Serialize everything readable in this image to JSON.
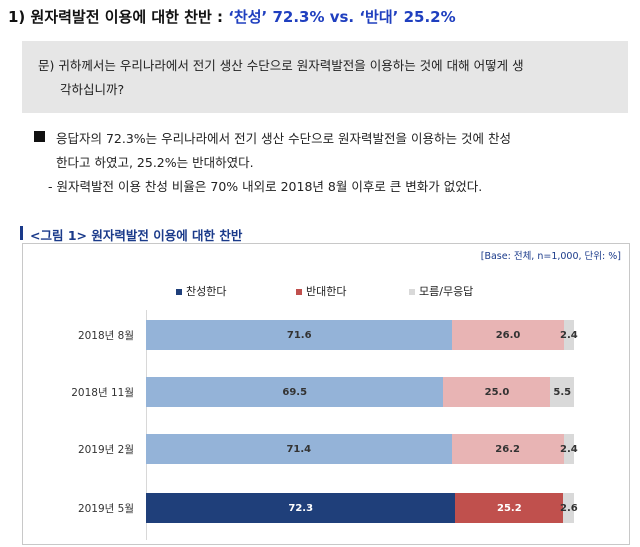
{
  "section": {
    "prefix": "1) 원자력발전 이용에 대한 찬반 : ",
    "favor": "‘찬성’ 72.3%",
    "vs": " vs. ",
    "oppose": "‘반대’ 25.2%"
  },
  "question": {
    "line1": "문) 귀하께서는 우리나라에서 전기 생산 수단으로 원자력발전을 이용하는 것에 대해 어떻게 생",
    "line2": "각하십니까?"
  },
  "answer": {
    "line1": "응답자의 72.3%는 우리나라에서 전기 생산 수단으로 원자력발전을 이용하는 것에 찬성",
    "line2": "한다고 하였고, 25.2%는 반대하였다.",
    "line3": "- 원자력발전 이용 찬성 비율은 70% 내외로 2018년 8월 이후로 큰 변화가 없었다."
  },
  "figure": {
    "title": "<그림 1> 원자력발전 이용에 대한 찬반",
    "base": "[Base: 전체, n=1,000, 단위: %]"
  },
  "colors": {
    "favor": "#94b3d8",
    "favor_latest": "#1f3f7a",
    "oppose": "#e8b4b4",
    "oppose_latest": "#c0504d",
    "dontknow": "#d9d9d9",
    "title_accent": "#1f3fbf"
  },
  "chart_data": {
    "type": "bar",
    "orientation": "horizontal-stacked",
    "categories": [
      "2018년 8월",
      "2018년 11월",
      "2019년 2월",
      "2019년 5월"
    ],
    "series": [
      {
        "name": "찬성한다",
        "values": [
          71.6,
          69.5,
          71.4,
          72.3
        ]
      },
      {
        "name": "반대한다",
        "values": [
          26.0,
          25.0,
          26.2,
          25.2
        ]
      },
      {
        "name": "모름/무응답",
        "values": [
          2.4,
          5.5,
          2.4,
          2.6
        ]
      }
    ],
    "xlim": [
      0,
      100
    ],
    "legend": "top"
  }
}
